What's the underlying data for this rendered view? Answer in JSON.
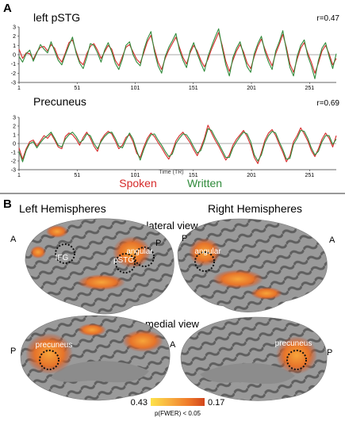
{
  "panel_a": {
    "letter": "A",
    "xlabel": "Time (TR)",
    "legend": {
      "spoken": "Spoken",
      "written": "Written"
    },
    "colors": {
      "spoken": "#d62a2a",
      "written": "#2f8a3a"
    },
    "plots": [
      {
        "region": "left pSTG",
        "r": "r=0.47"
      },
      {
        "region": "Precuneus",
        "r": "r=0.69"
      }
    ]
  },
  "panel_b": {
    "letter": "B",
    "left_title": "Left Hemispheres",
    "right_title": "Right Hemispheres",
    "lateral_label": "lateral view",
    "medial_label": "medial view",
    "directions": {
      "anterior": "A",
      "posterior": "P"
    },
    "rois": {
      "ifg": "IFG",
      "pstg": "pSTG",
      "angular_left": "angular",
      "angular_right": "angular",
      "precuneus_left": "precuneus",
      "precuneus_right": "precuneus"
    },
    "colorbar": {
      "min_label": "0.43",
      "max_label": "0.17",
      "caption": "p(FWER) < 0.05"
    }
  },
  "chart_data": [
    {
      "type": "line",
      "title": "left pSTG",
      "annotation": "r=0.47",
      "xlabel": "Time (TR)",
      "ylabel": "",
      "xlim": [
        1,
        274
      ],
      "ylim": [
        -3,
        3
      ],
      "xticks": [
        "1",
        "51",
        "101",
        "151",
        "201",
        "251"
      ],
      "yticks": [
        "3",
        "2",
        "1",
        "0",
        "-1",
        "-2",
        "-3"
      ],
      "series": [
        {
          "name": "Spoken",
          "color": "#d62a2a",
          "values": [
            0.6,
            -0.4,
            0.2,
            0.1,
            -0.5,
            0.3,
            0.8,
            0.9,
            0.4,
            1.1,
            0.7,
            -0.3,
            -0.8,
            0.2,
            1.3,
            1.6,
            0.4,
            -0.7,
            -1.1,
            0.1,
            0.9,
            1.2,
            0.5,
            -0.4,
            0.3,
            1.0,
            0.6,
            -0.6,
            -1.2,
            -0.2,
            0.8,
            1.1,
            0.3,
            -0.5,
            -0.9,
            0.2,
            1.4,
            2.1,
            0.6,
            -0.8,
            -1.6,
            -0.4,
            0.5,
            1.2,
            1.9,
            0.8,
            -0.3,
            -1.0,
            0.2,
            1.0,
            0.4,
            -0.6,
            -1.3,
            -0.5,
            0.6,
            1.5,
            2.4,
            1.0,
            -0.7,
            -1.8,
            -0.6,
            0.4,
            1.1,
            0.3,
            -0.9,
            -1.5,
            -0.2,
            0.9,
            1.7,
            0.6,
            -0.4,
            -1.2,
            0.1,
            1.1,
            2.2,
            0.8,
            -1.0,
            -1.9,
            -0.5,
            0.7,
            1.3,
            0.2,
            -0.8,
            -2.0,
            -0.9,
            0.4,
            1.0,
            0.1,
            -1.1,
            -0.4
          ]
        },
        {
          "name": "Written",
          "color": "#2f8a3a",
          "values": [
            -0.2,
            -0.8,
            0.1,
            0.5,
            -0.7,
            0.2,
            1.1,
            0.6,
            0.2,
            1.4,
            0.4,
            -0.6,
            -1.1,
            0.0,
            1.0,
            1.9,
            0.2,
            -0.9,
            -1.5,
            -0.3,
            1.2,
            1.0,
            0.2,
            -0.8,
            0.5,
            1.3,
            0.3,
            -0.9,
            -1.6,
            -0.5,
            1.0,
            1.4,
            0.0,
            -0.8,
            -1.2,
            0.5,
            1.7,
            2.5,
            0.3,
            -1.2,
            -2.0,
            -0.2,
            0.8,
            1.5,
            2.3,
            0.5,
            -0.6,
            -1.4,
            0.4,
            1.3,
            0.1,
            -0.9,
            -1.8,
            -0.2,
            0.9,
            1.9,
            2.8,
            0.7,
            -1.1,
            -2.3,
            -0.3,
            0.7,
            1.4,
            0.0,
            -1.3,
            -1.9,
            0.1,
            1.2,
            2.0,
            0.3,
            -0.8,
            -1.6,
            0.4,
            1.4,
            2.6,
            0.5,
            -1.4,
            -2.3,
            -0.2,
            1.0,
            1.6,
            -0.1,
            -1.2,
            -2.6,
            -0.6,
            0.7,
            1.3,
            -0.2,
            -1.5,
            0.1
          ]
        }
      ]
    },
    {
      "type": "line",
      "title": "Precuneus",
      "annotation": "r=0.69",
      "xlabel": "Time (TR)",
      "ylabel": "",
      "xlim": [
        1,
        274
      ],
      "ylim": [
        -3,
        3
      ],
      "xticks": [
        "1",
        "51",
        "101",
        "151",
        "201",
        "251"
      ],
      "yticks": [
        "3",
        "2",
        "1",
        "0",
        "-1",
        "-2",
        "-3"
      ],
      "series": [
        {
          "name": "Spoken",
          "color": "#d62a2a",
          "values": [
            -0.5,
            -1.8,
            -0.6,
            0.2,
            0.4,
            -0.3,
            0.3,
            0.9,
            0.6,
            1.1,
            0.4,
            -0.4,
            -0.6,
            0.8,
            1.2,
            1.0,
            0.5,
            -0.2,
            0.7,
            1.3,
            0.6,
            -0.3,
            -0.9,
            0.4,
            1.0,
            1.4,
            1.1,
            0.3,
            -0.6,
            -0.2,
            0.7,
            1.0,
            0.2,
            -1.1,
            -1.6,
            -0.4,
            0.6,
            1.2,
            0.8,
            0.1,
            -0.5,
            -1.2,
            -1.8,
            -0.9,
            0.3,
            0.9,
            1.3,
            0.7,
            0.1,
            -0.7,
            -1.4,
            -0.5,
            0.6,
            2.1,
            1.2,
            0.4,
            -0.3,
            -1.1,
            -1.9,
            -1.3,
            -0.2,
            0.5,
            1.0,
            1.5,
            0.8,
            -0.2,
            -1.6,
            -2.3,
            -1.0,
            0.4,
            1.2,
            1.6,
            0.9,
            -0.1,
            -1.0,
            -2.1,
            -1.4,
            0.2,
            0.9,
            1.8,
            1.1,
            0.3,
            -0.8,
            -1.5,
            -0.6,
            0.5,
            1.2,
            0.6,
            -0.4,
            0.9
          ]
        },
        {
          "name": "Written",
          "color": "#2f8a3a",
          "values": [
            -0.9,
            -2.1,
            -0.8,
            0.0,
            0.2,
            -0.5,
            0.1,
            0.6,
            0.9,
            1.3,
            0.6,
            -0.2,
            -0.4,
            0.5,
            1.0,
            1.3,
            0.8,
            0.1,
            0.4,
            1.1,
            0.9,
            0.0,
            -0.6,
            0.2,
            0.8,
            1.2,
            1.3,
            0.6,
            -0.3,
            -0.5,
            0.4,
            1.2,
            0.5,
            -0.8,
            -1.9,
            -0.7,
            0.3,
            1.0,
            1.1,
            0.4,
            -0.2,
            -0.9,
            -1.5,
            -1.2,
            0.0,
            0.6,
            1.1,
            1.0,
            0.4,
            -0.4,
            -1.1,
            -0.8,
            0.3,
            1.7,
            1.5,
            0.7,
            0.0,
            -0.8,
            -1.6,
            -1.6,
            -0.5,
            0.2,
            0.8,
            1.3,
            1.1,
            0.2,
            -1.3,
            -2.0,
            -1.3,
            0.1,
            0.9,
            1.4,
            1.2,
            0.2,
            -0.7,
            -1.8,
            -1.7,
            -0.1,
            0.6,
            1.5,
            1.4,
            0.6,
            -0.5,
            -1.3,
            -0.9,
            0.2,
            0.9,
            0.9,
            -0.1,
            0.5
          ]
        }
      ]
    }
  ]
}
